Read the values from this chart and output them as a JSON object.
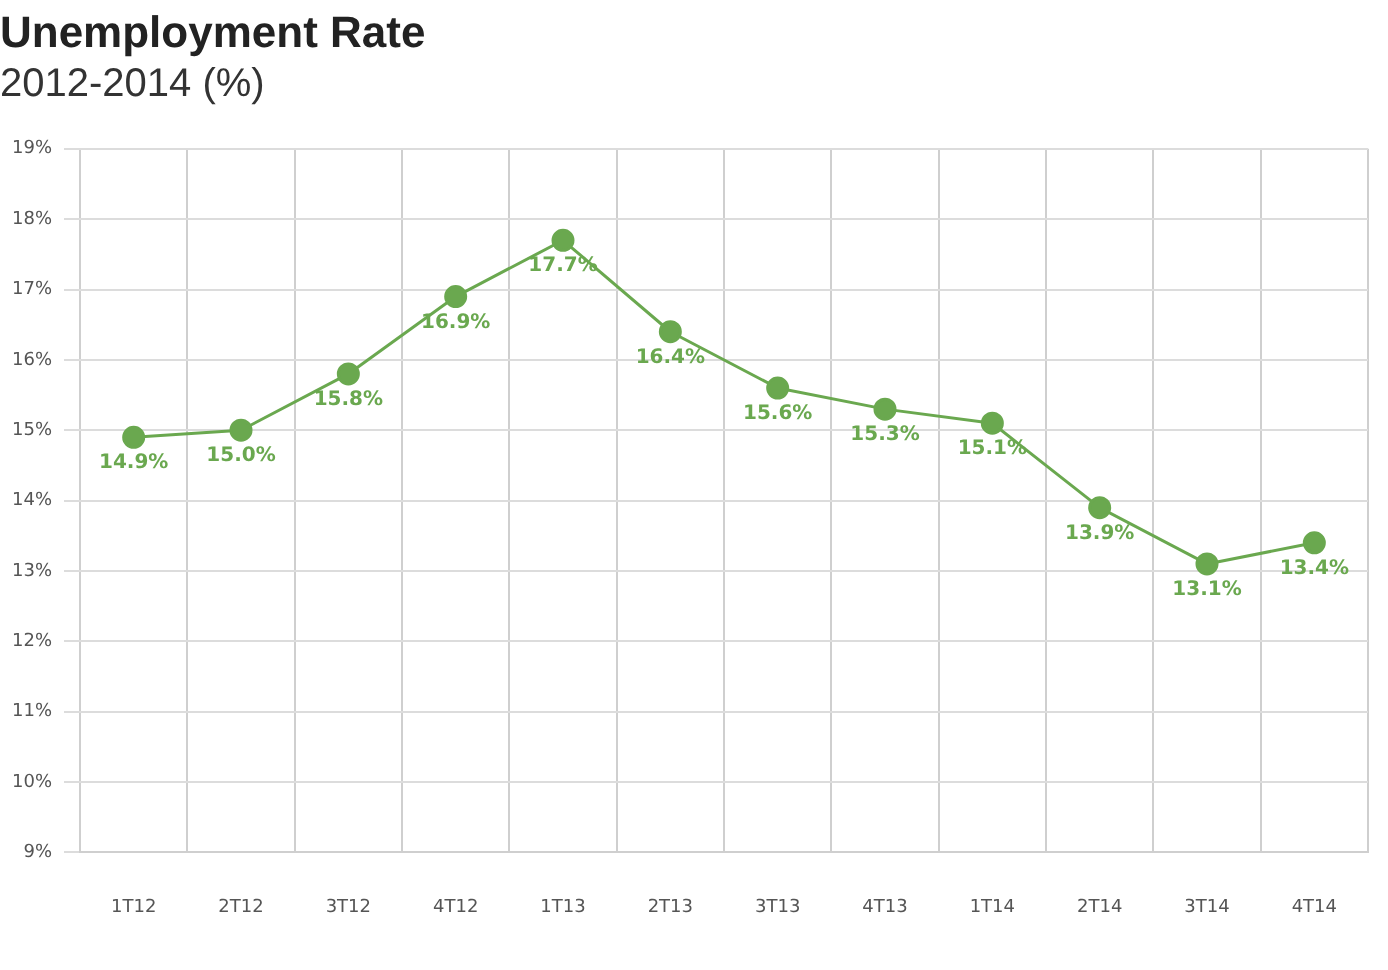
{
  "chart_data": {
    "type": "line",
    "title": "Unemployment Rate",
    "subtitle": "2012-2014 (%)",
    "categories": [
      "1T12",
      "2T12",
      "3T12",
      "4T12",
      "1T13",
      "2T13",
      "3T13",
      "4T13",
      "1T14",
      "2T14",
      "3T14",
      "4T14"
    ],
    "series": [
      {
        "color": "#6aa84f",
        "values": [
          14.9,
          15.0,
          15.8,
          16.9,
          17.7,
          16.4,
          15.6,
          15.3,
          15.1,
          13.9,
          13.1,
          13.4
        ],
        "value_labels": [
          "14.9%",
          "15.0%",
          "15.8%",
          "16.9%",
          "17.7%",
          "16.4%",
          "15.6%",
          "15.3%",
          "15.1%",
          "13.9%",
          "13.1%",
          "13.4%"
        ]
      }
    ],
    "ylim": [
      9,
      19
    ],
    "yticks": [
      {
        "value": 9,
        "label": "9%"
      },
      {
        "value": 10,
        "label": "10%"
      },
      {
        "value": 11,
        "label": "11%"
      },
      {
        "value": 12,
        "label": "12%"
      },
      {
        "value": 13,
        "label": "13%"
      },
      {
        "value": 14,
        "label": "14%"
      },
      {
        "value": 15,
        "label": "15%"
      },
      {
        "value": 16,
        "label": "16%"
      },
      {
        "value": 17,
        "label": "17%"
      },
      {
        "value": 18,
        "label": "18%"
      },
      {
        "value": 19,
        "label": "19%"
      }
    ],
    "grid": true,
    "legend": false,
    "marker": "circle",
    "line_style": "solid"
  }
}
